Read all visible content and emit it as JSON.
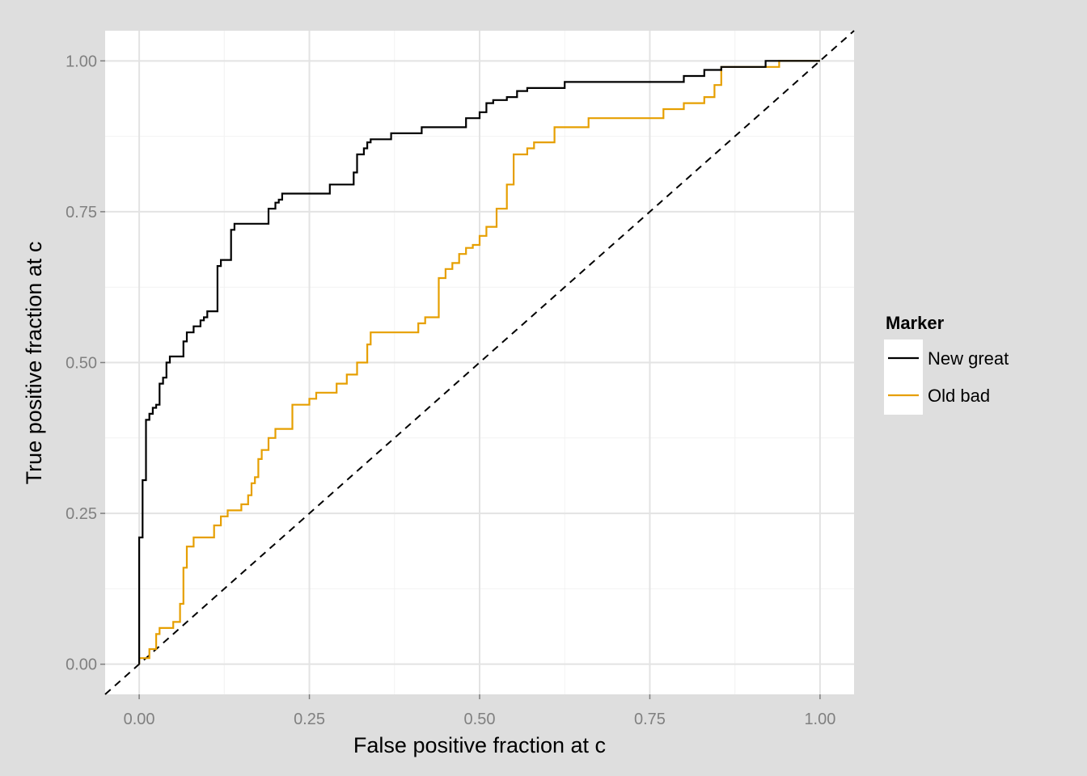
{
  "chart_data": {
    "type": "line",
    "xlabel": "False positive fraction at c",
    "ylabel": "True positive fraction at c",
    "xlim": [
      -0.05,
      1.05
    ],
    "ylim": [
      -0.05,
      1.05
    ],
    "x_ticks": [
      0,
      0.25,
      0.5,
      0.75,
      1
    ],
    "x_tick_labels": [
      "0.00",
      "0.25",
      "0.50",
      "0.75",
      "1.00"
    ],
    "y_ticks": [
      0,
      0.25,
      0.5,
      0.75,
      1
    ],
    "y_tick_labels": [
      "0.00",
      "0.25",
      "0.50",
      "0.75",
      "1.00"
    ],
    "grid": true,
    "legend": {
      "title": "Marker",
      "placement": "right",
      "entries": [
        "New great",
        "Old bad"
      ]
    },
    "reference_line": {
      "style": "dashed",
      "color": "#000000",
      "from": [
        -0.05,
        -0.05
      ],
      "to": [
        1.05,
        1.05
      ]
    },
    "series": [
      {
        "name": "New great",
        "color": "#000000",
        "step": true,
        "x": [
          0,
          0,
          0.005,
          0.005,
          0.01,
          0.01,
          0.015,
          0.015,
          0.02,
          0.02,
          0.025,
          0.025,
          0.03,
          0.03,
          0.035,
          0.035,
          0.04,
          0.04,
          0.045,
          0.045,
          0.05,
          0.05,
          0.065,
          0.065,
          0.07,
          0.07,
          0.08,
          0.08,
          0.09,
          0.09,
          0.095,
          0.095,
          0.1,
          0.1,
          0.105,
          0.105,
          0.115,
          0.115,
          0.12,
          0.12,
          0.135,
          0.135,
          0.14,
          0.14,
          0.19,
          0.19,
          0.2,
          0.2,
          0.205,
          0.205,
          0.21,
          0.21,
          0.28,
          0.28,
          0.315,
          0.315,
          0.32,
          0.32,
          0.33,
          0.33,
          0.335,
          0.335,
          0.34,
          0.34,
          0.37,
          0.37,
          0.415,
          0.415,
          0.48,
          0.48,
          0.5,
          0.5,
          0.51,
          0.51,
          0.52,
          0.52,
          0.54,
          0.54,
          0.555,
          0.555,
          0.57,
          0.57,
          0.625,
          0.625,
          0.8,
          0.8,
          0.83,
          0.83,
          0.835,
          0.835,
          0.855,
          0.855,
          0.92,
          0.92,
          1.0
        ],
        "y": [
          0,
          0.21,
          0.21,
          0.305,
          0.305,
          0.405,
          0.405,
          0.415,
          0.415,
          0.425,
          0.425,
          0.43,
          0.43,
          0.465,
          0.465,
          0.475,
          0.475,
          0.5,
          0.5,
          0.51,
          0.51,
          0.51,
          0.51,
          0.535,
          0.535,
          0.55,
          0.55,
          0.56,
          0.56,
          0.57,
          0.57,
          0.575,
          0.575,
          0.585,
          0.585,
          0.585,
          0.585,
          0.66,
          0.66,
          0.67,
          0.67,
          0.72,
          0.72,
          0.73,
          0.73,
          0.755,
          0.755,
          0.765,
          0.765,
          0.77,
          0.77,
          0.78,
          0.78,
          0.795,
          0.795,
          0.815,
          0.815,
          0.845,
          0.845,
          0.855,
          0.855,
          0.865,
          0.865,
          0.87,
          0.87,
          0.88,
          0.88,
          0.89,
          0.89,
          0.905,
          0.905,
          0.915,
          0.915,
          0.93,
          0.93,
          0.935,
          0.935,
          0.94,
          0.94,
          0.95,
          0.95,
          0.955,
          0.955,
          0.965,
          0.965,
          0.975,
          0.975,
          0.985,
          0.985,
          0.985,
          0.985,
          0.99,
          0.99,
          1.0,
          1.0
        ]
      },
      {
        "name": "Old bad",
        "color": "#E69F00",
        "step": true,
        "x": [
          0,
          0,
          0.01,
          0.01,
          0.015,
          0.015,
          0.025,
          0.025,
          0.03,
          0.03,
          0.05,
          0.05,
          0.06,
          0.06,
          0.065,
          0.065,
          0.07,
          0.07,
          0.075,
          0.075,
          0.08,
          0.08,
          0.11,
          0.11,
          0.12,
          0.12,
          0.13,
          0.13,
          0.15,
          0.15,
          0.16,
          0.16,
          0.165,
          0.165,
          0.17,
          0.17,
          0.175,
          0.175,
          0.18,
          0.18,
          0.19,
          0.19,
          0.195,
          0.195,
          0.2,
          0.2,
          0.225,
          0.225,
          0.25,
          0.25,
          0.26,
          0.26,
          0.29,
          0.29,
          0.305,
          0.305,
          0.32,
          0.32,
          0.335,
          0.335,
          0.34,
          0.34,
          0.41,
          0.41,
          0.42,
          0.42,
          0.44,
          0.44,
          0.45,
          0.45,
          0.46,
          0.46,
          0.47,
          0.47,
          0.48,
          0.48,
          0.49,
          0.49,
          0.5,
          0.5,
          0.51,
          0.51,
          0.525,
          0.525,
          0.54,
          0.54,
          0.55,
          0.55,
          0.57,
          0.57,
          0.58,
          0.58,
          0.6,
          0.6,
          0.61,
          0.61,
          0.66,
          0.66,
          0.7,
          0.7,
          0.77,
          0.77,
          0.8,
          0.8,
          0.83,
          0.83,
          0.845,
          0.845,
          0.855,
          0.855,
          0.94,
          0.94,
          1.0
        ],
        "y": [
          0,
          0.01,
          0.01,
          0.01,
          0.01,
          0.025,
          0.025,
          0.05,
          0.05,
          0.06,
          0.06,
          0.07,
          0.07,
          0.1,
          0.1,
          0.16,
          0.16,
          0.195,
          0.195,
          0.195,
          0.195,
          0.21,
          0.21,
          0.23,
          0.23,
          0.245,
          0.245,
          0.255,
          0.255,
          0.265,
          0.265,
          0.28,
          0.28,
          0.3,
          0.3,
          0.31,
          0.31,
          0.34,
          0.34,
          0.355,
          0.355,
          0.375,
          0.375,
          0.375,
          0.375,
          0.39,
          0.39,
          0.43,
          0.43,
          0.44,
          0.44,
          0.45,
          0.45,
          0.465,
          0.465,
          0.48,
          0.48,
          0.5,
          0.5,
          0.53,
          0.53,
          0.55,
          0.55,
          0.565,
          0.565,
          0.575,
          0.575,
          0.64,
          0.64,
          0.655,
          0.655,
          0.665,
          0.665,
          0.68,
          0.68,
          0.69,
          0.69,
          0.695,
          0.695,
          0.71,
          0.71,
          0.725,
          0.725,
          0.755,
          0.755,
          0.795,
          0.795,
          0.845,
          0.845,
          0.855,
          0.855,
          0.865,
          0.865,
          0.865,
          0.865,
          0.89,
          0.89,
          0.905,
          0.905,
          0.905,
          0.905,
          0.92,
          0.92,
          0.93,
          0.93,
          0.94,
          0.94,
          0.96,
          0.96,
          0.99,
          0.99,
          1.0,
          1.0
        ]
      }
    ]
  }
}
